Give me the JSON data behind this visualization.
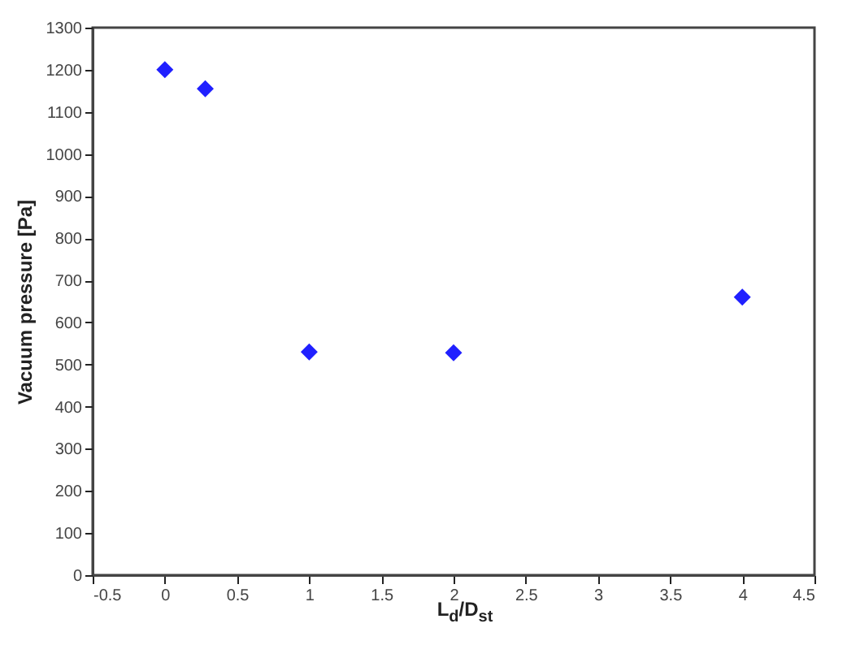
{
  "chart_data": {
    "type": "scatter",
    "xlabel": "L$_{d}$/D$_{st}$",
    "ylabel": "Vacuum pressure [Pa]",
    "x": [
      0,
      0.28,
      1,
      2,
      4
    ],
    "series": [
      {
        "color": "#2020ff",
        "values": [
          1200,
          1155,
          530,
          528,
          660
        ]
      }
    ],
    "xlim": [
      -0.5,
      4.5
    ],
    "xticks": [
      -0.5,
      0,
      0.5,
      1,
      1.5,
      2,
      2.5,
      3,
      3.5,
      4,
      4.5
    ],
    "ylim": [
      0,
      1300
    ],
    "yticks": [
      0,
      100,
      200,
      300,
      400,
      500,
      600,
      700,
      800,
      900,
      1000,
      1100,
      1200,
      1300
    ],
    "grid": false,
    "marker": "diamond"
  }
}
